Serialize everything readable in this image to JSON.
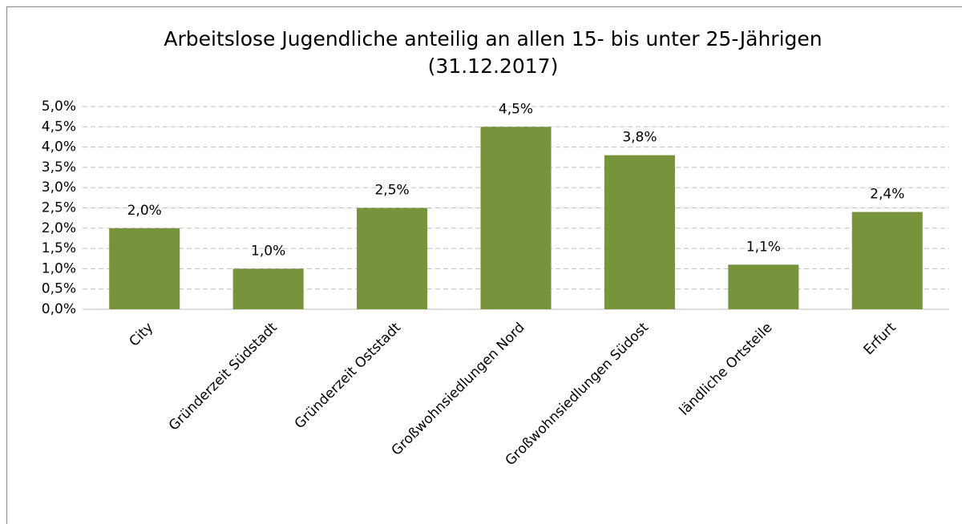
{
  "chart_data": {
    "type": "bar",
    "title": "Arbeitslose Jugendliche anteilig an allen 15- bis unter 25-Jährigen",
    "subtitle": "(31.12.2017)",
    "categories": [
      "City",
      "Gründerzeit Südstadt",
      "Gründerzeit Oststadt",
      "Großwohnsiedlungen Nord",
      "Großwohnsiedlungen Südost",
      "ländliche Ortsteile",
      "Erfurt"
    ],
    "values": [
      2.0,
      1.0,
      2.5,
      4.5,
      3.8,
      1.1,
      2.4
    ],
    "value_labels": [
      "2,0%",
      "1,0%",
      "2,5%",
      "4,5%",
      "3,8%",
      "1,1%",
      "2,4%"
    ],
    "color": "#77933c",
    "ylim": [
      0,
      5
    ],
    "yticks": [
      {
        "value": 0,
        "label": "0,0%"
      },
      {
        "value": 0.5,
        "label": "0,5%"
      },
      {
        "value": 1,
        "label": "1,0%"
      },
      {
        "value": 1.5,
        "label": "1,5%"
      },
      {
        "value": 2,
        "label": "2,0%"
      },
      {
        "value": 2.5,
        "label": "2,5%"
      },
      {
        "value": 3,
        "label": "3,0%"
      },
      {
        "value": 3.5,
        "label": "3,5%"
      },
      {
        "value": 4,
        "label": "4,0%"
      },
      {
        "value": 4.5,
        "label": "4,5%"
      },
      {
        "value": 5,
        "label": "5,0%"
      }
    ],
    "grid": true
  }
}
